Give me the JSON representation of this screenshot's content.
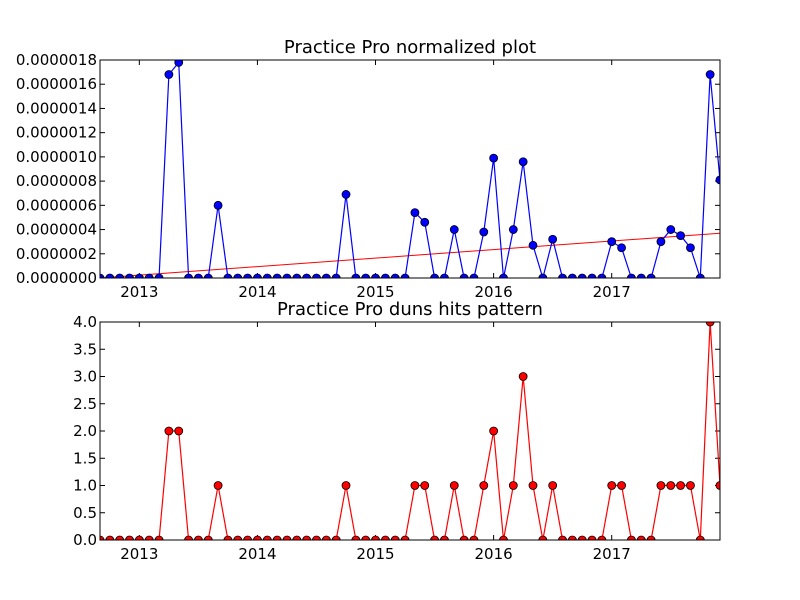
{
  "chart_data": [
    {
      "type": "line",
      "title": "Practice Pro normalized plot",
      "xlabel": "",
      "ylabel": "",
      "x_start": 2012.667,
      "x_step": 0.08333,
      "xlim": [
        2012.667,
        2017.917
      ],
      "ylim": [
        0,
        1.8e-06
      ],
      "x_ticks": [
        {
          "value": 2013,
          "label": "2013"
        },
        {
          "value": 2014,
          "label": "2014"
        },
        {
          "value": 2015,
          "label": "2015"
        },
        {
          "value": 2016,
          "label": "2016"
        },
        {
          "value": 2017,
          "label": "2017"
        }
      ],
      "y_ticks": [
        {
          "value": 0,
          "label": "0.0000000"
        },
        {
          "value": 2e-07,
          "label": "0.0000002"
        },
        {
          "value": 4e-07,
          "label": "0.0000004"
        },
        {
          "value": 6e-07,
          "label": "0.0000006"
        },
        {
          "value": 8e-07,
          "label": "0.0000008"
        },
        {
          "value": 1e-06,
          "label": "0.0000010"
        },
        {
          "value": 1.2e-06,
          "label": "0.0000012"
        },
        {
          "value": 1.4e-06,
          "label": "0.0000014"
        },
        {
          "value": 1.6e-06,
          "label": "0.0000016"
        },
        {
          "value": 1.8e-06,
          "label": "0.0000018"
        }
      ],
      "series": [
        {
          "name": "normalized",
          "color": "#0000ff",
          "marker_color": "#0000ff",
          "values": [
            0,
            0,
            0,
            0,
            0,
            0,
            0,
            1.68e-06,
            1.78e-06,
            0,
            0,
            0,
            6e-07,
            0,
            0,
            0,
            0,
            0,
            0,
            0,
            0,
            0,
            0,
            0,
            0,
            6.9e-07,
            0,
            0,
            0,
            0,
            0,
            0,
            5.4e-07,
            4.6e-07,
            0,
            0,
            4e-07,
            0,
            0,
            3.8e-07,
            9.9e-07,
            0,
            4e-07,
            9.6e-07,
            2.7e-07,
            0,
            3.2e-07,
            0,
            0,
            0,
            0,
            0,
            3e-07,
            2.5e-07,
            0,
            0,
            0,
            3e-07,
            4e-07,
            3.5e-07,
            2.5e-07,
            0,
            1.68e-06,
            8.1e-07
          ]
        }
      ],
      "trendline": {
        "color": "#ff0000",
        "start": 0,
        "end": 3.7e-07
      }
    },
    {
      "type": "line",
      "title": "Practice Pro duns hits pattern",
      "xlabel": "",
      "ylabel": "",
      "x_start": 2012.667,
      "x_step": 0.08333,
      "xlim": [
        2012.667,
        2017.917
      ],
      "ylim": [
        0,
        4.0
      ],
      "x_ticks": [
        {
          "value": 2013,
          "label": "2013"
        },
        {
          "value": 2014,
          "label": "2014"
        },
        {
          "value": 2015,
          "label": "2015"
        },
        {
          "value": 2016,
          "label": "2016"
        },
        {
          "value": 2017,
          "label": "2017"
        }
      ],
      "y_ticks": [
        {
          "value": 0,
          "label": "0.0"
        },
        {
          "value": 0.5,
          "label": "0.5"
        },
        {
          "value": 1.0,
          "label": "1.0"
        },
        {
          "value": 1.5,
          "label": "1.5"
        },
        {
          "value": 2.0,
          "label": "2.0"
        },
        {
          "value": 2.5,
          "label": "2.5"
        },
        {
          "value": 3.0,
          "label": "3.0"
        },
        {
          "value": 3.5,
          "label": "3.5"
        },
        {
          "value": 4.0,
          "label": "4.0"
        }
      ],
      "series": [
        {
          "name": "duns hits",
          "color": "#ff0000",
          "marker_color": "#ff0000",
          "values": [
            0,
            0,
            0,
            0,
            0,
            0,
            0,
            2,
            2,
            0,
            0,
            0,
            1,
            0,
            0,
            0,
            0,
            0,
            0,
            0,
            0,
            0,
            0,
            0,
            0,
            1,
            0,
            0,
            0,
            0,
            0,
            0,
            1,
            1,
            0,
            0,
            1,
            0,
            0,
            1,
            2,
            0,
            1,
            3,
            1,
            0,
            1,
            0,
            0,
            0,
            0,
            0,
            1,
            1,
            0,
            0,
            0,
            1,
            1,
            1,
            1,
            0,
            4,
            1
          ]
        }
      ]
    }
  ]
}
